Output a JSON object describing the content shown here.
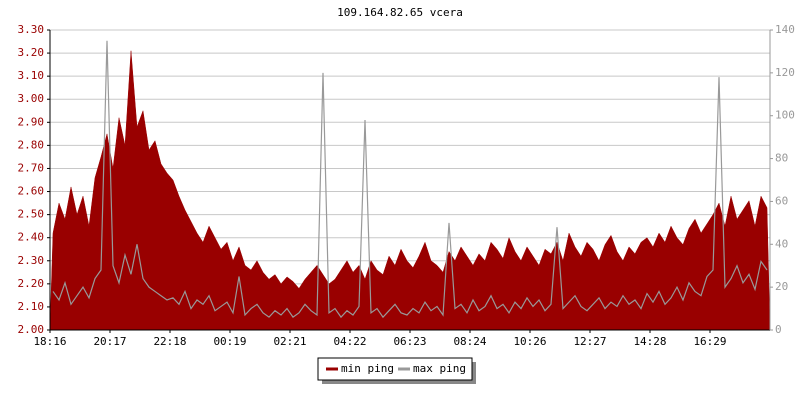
{
  "chart_data": {
    "type": "line",
    "title": "109.164.82.65 vcera",
    "categories": [
      "18:16",
      null,
      null,
      null,
      null,
      null,
      null,
      null,
      null,
      null,
      "20:17",
      null,
      null,
      null,
      null,
      null,
      null,
      null,
      null,
      null,
      "22:18",
      null,
      null,
      null,
      null,
      null,
      null,
      null,
      null,
      null,
      "00:19",
      null,
      null,
      null,
      null,
      null,
      null,
      null,
      null,
      null,
      "02:21",
      null,
      null,
      null,
      null,
      null,
      null,
      null,
      null,
      null,
      "04:22",
      null,
      null,
      null,
      null,
      null,
      null,
      null,
      null,
      null,
      "06:23",
      null,
      null,
      null,
      null,
      null,
      null,
      null,
      null,
      null,
      "08:24",
      null,
      null,
      null,
      null,
      null,
      null,
      null,
      null,
      null,
      "10:26",
      null,
      null,
      null,
      null,
      null,
      null,
      null,
      null,
      null,
      "12:27",
      null,
      null,
      null,
      null,
      null,
      null,
      null,
      null,
      null,
      "14:28",
      null,
      null,
      null,
      null,
      null,
      null,
      null,
      null,
      null,
      "16:29",
      null,
      null,
      null,
      null,
      null,
      null,
      null,
      null,
      null
    ],
    "series": [
      {
        "name": "min ping",
        "color": "#990000",
        "fill": true,
        "values": [
          2.42,
          2.55,
          2.48,
          2.62,
          2.5,
          2.58,
          2.45,
          2.66,
          2.75,
          2.85,
          2.7,
          2.92,
          2.8,
          3.21,
          2.88,
          2.95,
          2.78,
          2.82,
          2.72,
          2.68,
          2.65,
          2.58,
          2.52,
          2.47,
          2.42,
          2.38,
          2.45,
          2.4,
          2.35,
          2.38,
          2.3,
          2.36,
          2.28,
          2.26,
          2.3,
          2.25,
          2.22,
          2.24,
          2.2,
          2.23,
          2.21,
          2.18,
          2.22,
          2.25,
          2.28,
          2.24,
          2.2,
          2.22,
          2.26,
          2.3,
          2.25,
          2.28,
          2.22,
          2.3,
          2.26,
          2.24,
          2.32,
          2.28,
          2.35,
          2.3,
          2.27,
          2.32,
          2.38,
          2.3,
          2.28,
          2.25,
          2.34,
          2.3,
          2.36,
          2.32,
          2.28,
          2.33,
          2.3,
          2.38,
          2.35,
          2.31,
          2.4,
          2.34,
          2.3,
          2.36,
          2.32,
          2.28,
          2.35,
          2.33,
          2.38,
          2.3,
          2.42,
          2.36,
          2.32,
          2.38,
          2.35,
          2.3,
          2.37,
          2.41,
          2.34,
          2.3,
          2.36,
          2.33,
          2.38,
          2.4,
          2.36,
          2.42,
          2.38,
          2.45,
          2.4,
          2.37,
          2.44,
          2.48,
          2.42,
          2.46,
          2.5,
          2.55,
          2.45,
          2.58,
          2.48,
          2.52,
          2.56,
          2.45,
          2.58,
          2.53
        ]
      },
      {
        "name": "max ping",
        "color": "#999999",
        "fill": false,
        "axis": "y2",
        "values": [
          18,
          14,
          22,
          12,
          16,
          20,
          15,
          24,
          28,
          135,
          30,
          22,
          35,
          26,
          40,
          24,
          20,
          18,
          16,
          14,
          15,
          12,
          18,
          10,
          14,
          12,
          16,
          9,
          11,
          13,
          8,
          25,
          7,
          10,
          12,
          8,
          6,
          9,
          7,
          10,
          6,
          8,
          12,
          9,
          7,
          120,
          8,
          10,
          6,
          9,
          7,
          11,
          98,
          8,
          10,
          6,
          9,
          12,
          8,
          7,
          10,
          8,
          13,
          9,
          11,
          7,
          50,
          10,
          12,
          8,
          14,
          9,
          11,
          16,
          10,
          12,
          8,
          13,
          10,
          15,
          11,
          14,
          9,
          12,
          48,
          10,
          13,
          16,
          11,
          9,
          12,
          15,
          10,
          13,
          11,
          16,
          12,
          14,
          10,
          17,
          13,
          18,
          12,
          15,
          20,
          14,
          22,
          18,
          16,
          25,
          28,
          118,
          20,
          24,
          30,
          22,
          26,
          19,
          32,
          28
        ]
      }
    ],
    "ylim": [
      2.0,
      3.3
    ],
    "yticks": [
      {
        "value": 2.0,
        "label": "2.00"
      },
      {
        "value": 2.1,
        "label": "2.10"
      },
      {
        "value": 2.2,
        "label": "2.20"
      },
      {
        "value": 2.3,
        "label": "2.30"
      },
      {
        "value": 2.4,
        "label": "2.40"
      },
      {
        "value": 2.5,
        "label": "2.50"
      },
      {
        "value": 2.6,
        "label": "2.60"
      },
      {
        "value": 2.7,
        "label": "2.70"
      },
      {
        "value": 2.8,
        "label": "2.80"
      },
      {
        "value": 2.9,
        "label": "2.90"
      },
      {
        "value": 3.0,
        "label": "3.00"
      },
      {
        "value": 3.1,
        "label": "3.10"
      },
      {
        "value": 3.2,
        "label": "3.20"
      },
      {
        "value": 3.3,
        "label": "3.30"
      }
    ],
    "y2lim": [
      0,
      140
    ],
    "y2ticks": [
      0,
      20,
      40,
      60,
      80,
      100,
      120,
      140
    ],
    "grid": true
  }
}
